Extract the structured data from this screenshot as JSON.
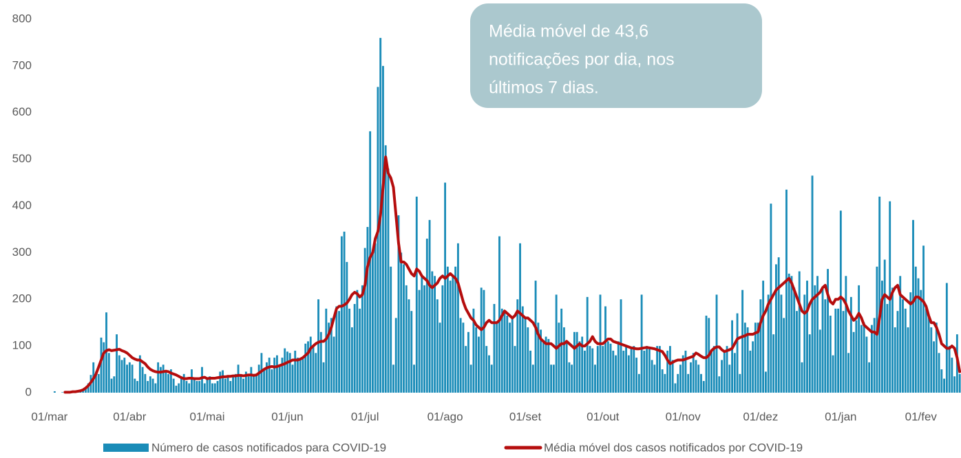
{
  "chart_data": {
    "type": "bar",
    "annotation_lines": [
      "Média móvel de 43,6",
      "notificações por dia, nos",
      "últimos 7 dias."
    ],
    "ylim": [
      0,
      800
    ],
    "yticks": [
      0,
      100,
      200,
      300,
      400,
      500,
      600,
      700,
      800
    ],
    "grid": false,
    "categories": [
      "01/mar",
      null,
      null,
      null,
      null,
      null,
      null,
      null,
      null,
      null,
      null,
      null,
      null,
      null,
      null,
      null,
      null,
      null,
      null,
      null,
      null,
      null,
      null,
      null,
      null,
      null,
      null,
      null,
      null,
      null,
      null,
      "01/abr",
      null,
      null,
      null,
      null,
      null,
      null,
      null,
      null,
      null,
      null,
      null,
      null,
      null,
      null,
      null,
      null,
      null,
      null,
      null,
      null,
      null,
      null,
      null,
      null,
      null,
      null,
      null,
      null,
      null,
      "01/mai",
      null,
      null,
      null,
      null,
      null,
      null,
      null,
      null,
      null,
      null,
      null,
      null,
      null,
      null,
      null,
      null,
      null,
      null,
      null,
      null,
      null,
      null,
      null,
      null,
      null,
      null,
      null,
      null,
      null,
      null,
      "01/jun",
      null,
      null,
      null,
      null,
      null,
      null,
      null,
      null,
      null,
      null,
      null,
      null,
      null,
      null,
      null,
      null,
      null,
      null,
      null,
      null,
      null,
      null,
      null,
      null,
      null,
      null,
      null,
      null,
      null,
      "01/jul",
      null,
      null,
      null,
      null,
      null,
      null,
      null,
      null,
      null,
      null,
      null,
      null,
      null,
      null,
      null,
      null,
      null,
      null,
      null,
      null,
      null,
      null,
      null,
      null,
      null,
      null,
      null,
      null,
      null,
      null,
      "01/ago",
      null,
      null,
      null,
      null,
      null,
      null,
      null,
      null,
      null,
      null,
      null,
      null,
      null,
      null,
      null,
      null,
      null,
      null,
      null,
      null,
      null,
      null,
      null,
      null,
      null,
      null,
      null,
      null,
      null,
      null,
      "01/set",
      null,
      null,
      null,
      null,
      null,
      null,
      null,
      null,
      null,
      null,
      null,
      null,
      null,
      null,
      null,
      null,
      null,
      null,
      null,
      null,
      null,
      null,
      null,
      null,
      null,
      null,
      null,
      null,
      null,
      "01/out",
      null,
      null,
      null,
      null,
      null,
      null,
      null,
      null,
      null,
      null,
      null,
      null,
      null,
      null,
      null,
      null,
      null,
      null,
      null,
      null,
      null,
      null,
      null,
      null,
      null,
      null,
      null,
      null,
      null,
      null,
      "01/nov",
      null,
      null,
      null,
      null,
      null,
      null,
      null,
      null,
      null,
      null,
      null,
      null,
      null,
      null,
      null,
      null,
      null,
      null,
      null,
      null,
      null,
      null,
      null,
      null,
      null,
      null,
      null,
      null,
      null,
      "01/dez",
      null,
      null,
      null,
      null,
      null,
      null,
      null,
      null,
      null,
      null,
      null,
      null,
      null,
      null,
      null,
      null,
      null,
      null,
      null,
      null,
      null,
      null,
      null,
      null,
      null,
      null,
      null,
      null,
      null,
      null,
      "01/jan",
      null,
      null,
      null,
      null,
      null,
      null,
      null,
      null,
      null,
      null,
      null,
      null,
      null,
      null,
      null,
      null,
      null,
      null,
      null,
      null,
      null,
      null,
      null,
      null,
      null,
      null,
      null,
      null,
      null,
      null,
      "01/fev",
      null,
      null,
      null,
      null,
      null,
      null,
      null,
      null,
      null,
      null,
      null,
      null,
      null,
      null,
      null
    ],
    "series": [
      {
        "name": "Número de casos notificados para COVID-19",
        "type": "bar",
        "color": "#1a8cb8",
        "values": [
          0,
          0,
          3,
          0,
          0,
          1,
          0,
          2,
          1,
          2,
          3,
          5,
          2,
          8,
          12,
          20,
          38,
          65,
          45,
          40,
          118,
          108,
          172,
          85,
          30,
          35,
          125,
          80,
          70,
          75,
          60,
          65,
          60,
          30,
          25,
          80,
          55,
          40,
          25,
          35,
          30,
          20,
          65,
          55,
          60,
          45,
          40,
          50,
          30,
          15,
          20,
          35,
          40,
          25,
          20,
          50,
          30,
          25,
          25,
          55,
          20,
          30,
          35,
          20,
          20,
          25,
          45,
          48,
          30,
          35,
          25,
          35,
          40,
          60,
          35,
          30,
          45,
          35,
          55,
          40,
          40,
          60,
          85,
          50,
          65,
          75,
          50,
          75,
          80,
          60,
          75,
          95,
          88,
          85,
          60,
          90,
          75,
          70,
          72,
          105,
          110,
          120,
          100,
          85,
          200,
          130,
          65,
          180,
          150,
          160,
          120,
          185,
          175,
          335,
          345,
          280,
          180,
          140,
          190,
          220,
          180,
          230,
          310,
          355,
          560,
          300,
          320,
          655,
          760,
          700,
          530,
          480,
          270,
          60,
          160,
          380,
          300,
          275,
          230,
          200,
          175,
          60,
          420,
          220,
          250,
          230,
          330,
          370,
          260,
          250,
          200,
          150,
          230,
          450,
          270,
          240,
          250,
          270,
          320,
          160,
          150,
          100,
          130,
          60,
          180,
          140,
          120,
          225,
          220,
          100,
          80,
          60,
          190,
          150,
          335,
          180,
          175,
          165,
          150,
          160,
          100,
          200,
          320,
          185,
          160,
          140,
          90,
          60,
          240,
          150,
          135,
          110,
          120,
          115,
          60,
          60,
          210,
          150,
          180,
          140,
          110,
          65,
          60,
          130,
          130,
          110,
          120,
          90,
          205,
          100,
          95,
          60,
          100,
          210,
          100,
          185,
          110,
          105,
          90,
          80,
          110,
          200,
          90,
          100,
          80,
          95,
          100,
          75,
          40,
          210,
          90,
          100,
          95,
          70,
          60,
          100,
          100,
          50,
          40,
          90,
          100,
          70,
          20,
          40,
          60,
          80,
          90,
          40,
          65,
          85,
          70,
          60,
          40,
          25,
          165,
          160,
          90,
          100,
          210,
          35,
          70,
          90,
          100,
          60,
          155,
          85,
          170,
          40,
          220,
          150,
          140,
          90,
          110,
          150,
          150,
          200,
          240,
          45,
          210,
          405,
          125,
          275,
          290,
          210,
          160,
          435,
          255,
          250,
          225,
          175,
          260,
          65,
          210,
          240,
          125,
          465,
          230,
          250,
          135,
          225,
          200,
          265,
          165,
          80,
          180,
          180,
          390,
          175,
          250,
          85,
          205,
          130,
          155,
          230,
          145,
          150,
          120,
          65,
          145,
          160,
          270,
          420,
          240,
          285,
          190,
          410,
          225,
          140,
          175,
          250,
          200,
          180,
          140,
          215,
          370,
          270,
          245,
          220,
          315,
          180,
          165,
          140,
          110,
          150,
          85,
          50,
          30,
          235,
          100,
          75,
          35,
          125,
          40
        ]
      },
      {
        "name": "Média móvel dos casos notificados por COVID-19",
        "type": "line",
        "color": "#b50d0d",
        "values": [
          null,
          null,
          null,
          null,
          null,
          null,
          1,
          1,
          1,
          2,
          2,
          3,
          4,
          6,
          10,
          15,
          22,
          30,
          40,
          55,
          70,
          85,
          90,
          92,
          90,
          91,
          92,
          93,
          90,
          88,
          85,
          80,
          75,
          72,
          70,
          70,
          66,
          62,
          55,
          50,
          47,
          45,
          44,
          44,
          45,
          46,
          45,
          42,
          40,
          38,
          35,
          32,
          30,
          30,
          31,
          31,
          30,
          30,
          30,
          32,
          33,
          30,
          31,
          31,
          31,
          32,
          33,
          34,
          34,
          35,
          35,
          36,
          36,
          37,
          37,
          36,
          37,
          38,
          38,
          37,
          38,
          42,
          46,
          50,
          53,
          55,
          56,
          55,
          56,
          58,
          60,
          62,
          65,
          67,
          70,
          70,
          70,
          72,
          75,
          80,
          85,
          95,
          100,
          105,
          108,
          110,
          110,
          115,
          125,
          140,
          160,
          180,
          185,
          185,
          188,
          192,
          200,
          210,
          215,
          212,
          205,
          210,
          230,
          270,
          290,
          300,
          330,
          345,
          380,
          440,
          505,
          470,
          460,
          440,
          380,
          320,
          280,
          280,
          275,
          265,
          255,
          250,
          265,
          260,
          250,
          245,
          240,
          230,
          225,
          230,
          235,
          245,
          250,
          245,
          250,
          255,
          250,
          245,
          235,
          215,
          195,
          180,
          170,
          160,
          155,
          145,
          140,
          135,
          140,
          150,
          155,
          150,
          150,
          150,
          155,
          165,
          175,
          170,
          165,
          160,
          165,
          175,
          170,
          165,
          160,
          160,
          155,
          150,
          140,
          125,
          115,
          110,
          105,
          105,
          105,
          100,
          95,
          100,
          105,
          105,
          110,
          105,
          100,
          95,
          100,
          105,
          100,
          100,
          105,
          110,
          120,
          110,
          105,
          105,
          105,
          110,
          115,
          115,
          110,
          108,
          106,
          104,
          102,
          100,
          98,
          96,
          95,
          94,
          94,
          95,
          96,
          97,
          96,
          95,
          94,
          92,
          90,
          88,
          80,
          70,
          62,
          65,
          68,
          70,
          70,
          70,
          72,
          74,
          76,
          78,
          85,
          82,
          78,
          75,
          75,
          80,
          90,
          95,
          98,
          98,
          92,
          88,
          90,
          92,
          95,
          105,
          115,
          118,
          120,
          122,
          125,
          125,
          125,
          128,
          130,
          150,
          165,
          175,
          190,
          200,
          210,
          220,
          225,
          230,
          235,
          240,
          245,
          235,
          220,
          205,
          190,
          175,
          170,
          175,
          190,
          200,
          205,
          210,
          215,
          225,
          230,
          210,
          195,
          190,
          200,
          200,
          205,
          200,
          190,
          175,
          165,
          155,
          160,
          170,
          160,
          145,
          140,
          135,
          130,
          130,
          125,
          160,
          200,
          210,
          205,
          200,
          215,
          225,
          230,
          210,
          205,
          200,
          195,
          190,
          195,
          205,
          205,
          200,
          195,
          185,
          165,
          150,
          150,
          140,
          125,
          105,
          100,
          95,
          95,
          100,
          95,
          75,
          45
        ]
      }
    ]
  }
}
